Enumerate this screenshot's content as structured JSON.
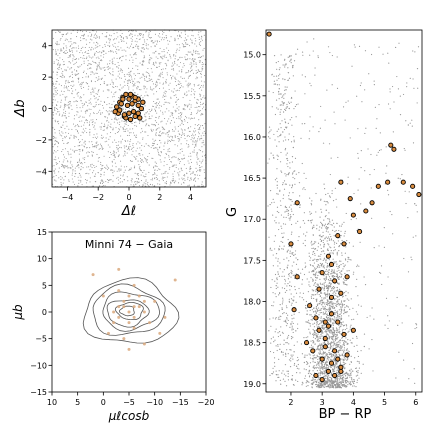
{
  "chart_data": [
    {
      "id": "sky",
      "type": "scatter",
      "xlabel": "Δℓ",
      "ylabel": "Δb",
      "xlim": [
        -5,
        5
      ],
      "ylim": [
        -5,
        5
      ],
      "xticks": [
        -4,
        -2,
        0,
        2,
        4
      ],
      "yticks": [
        -4,
        -2,
        0,
        2,
        4
      ],
      "series": [
        {
          "role": "field",
          "color": "#999999",
          "description_count": 2600,
          "extent": {
            "x": [
              -5,
              5
            ],
            "y": [
              -5,
              5
            ]
          }
        },
        {
          "role": "members",
          "color": "#d98c3f",
          "edge": "#000000",
          "x": [
            -0.8,
            -0.6,
            -0.4,
            -0.2,
            0.0,
            0.2,
            0.4,
            0.6,
            0.8,
            -0.7,
            -0.3,
            0.1,
            0.5,
            0.7,
            -0.5,
            -0.1,
            0.3,
            0.6,
            -0.6,
            -0.2,
            0.2,
            0.4,
            -0.4,
            0.0,
            0.9,
            -0.9,
            0.1,
            0.4,
            -0.3,
            0.6
          ],
          "y": [
            0.1,
            0.4,
            0.7,
            0.9,
            0.6,
            0.8,
            0.5,
            0.2,
            0.0,
            -0.3,
            -0.5,
            -0.7,
            -0.4,
            -0.6,
            0.3,
            0.2,
            -0.2,
            0.6,
            -0.1,
            -0.6,
            0.3,
            -0.5,
            0.6,
            -0.3,
            0.4,
            -0.2,
            0.9,
            0.7,
            -0.4,
            -0.3
          ]
        }
      ]
    },
    {
      "id": "pm",
      "type": "scatter",
      "title": "Minni 74  −  Gaia",
      "xlabel": "μℓcosb",
      "ylabel": "μb",
      "xlim": [
        10,
        -20
      ],
      "ylim": [
        -15,
        15
      ],
      "xticks": [
        10,
        5,
        0,
        -5,
        -10,
        -15,
        -20
      ],
      "yticks": [
        -15,
        -10,
        -5,
        0,
        5,
        10,
        15
      ],
      "series": [
        {
          "role": "members",
          "color": "#d9a87c",
          "x": [
            -3,
            -5,
            -6,
            -4,
            -7,
            -2,
            -8,
            -5,
            -3,
            -6,
            -9,
            -4,
            0,
            -1,
            -10,
            -12,
            -6,
            -4,
            -3,
            -8,
            -5,
            -7,
            -2,
            -6,
            -11,
            2,
            -14,
            -8,
            -5,
            -3
          ],
          "y": [
            1,
            0,
            -1,
            2,
            1,
            -2,
            0,
            3,
            -1,
            -3,
            -2,
            1,
            3,
            -4,
            2,
            -1,
            5,
            -5,
            4,
            2,
            -2,
            3,
            0,
            1,
            -4,
            7,
            6,
            -6,
            -7,
            8
          ]
        },
        {
          "role": "contours",
          "color": "#555555",
          "center": [
            -5,
            0
          ],
          "levels": [
            [
              9,
              6
            ],
            [
              7,
              4.6
            ],
            [
              5.5,
              3.5
            ],
            [
              4,
              2.5
            ],
            [
              2.6,
              1.6
            ],
            [
              1.4,
              0.9
            ]
          ]
        }
      ]
    },
    {
      "id": "cmd",
      "type": "scatter",
      "xlabel": "BP − RP",
      "ylabel": "G",
      "xlim": [
        1.2,
        6.2
      ],
      "ylim": [
        19.1,
        14.7
      ],
      "xticks": [
        2,
        3,
        4,
        5,
        6
      ],
      "yticks": [
        15.0,
        15.5,
        16.0,
        16.5,
        17.0,
        17.5,
        18.0,
        18.5,
        19.0
      ],
      "series": [
        {
          "role": "field",
          "color": "#999999",
          "description_count": 3000
        },
        {
          "role": "members",
          "color": "#d98c3f",
          "edge": "#000000",
          "x": [
            1.3,
            5.2,
            5.3,
            3.6,
            3.9,
            5.6,
            5.9,
            6.1,
            4.0,
            4.4,
            4.6,
            3.5,
            3.7,
            3.2,
            3.3,
            3.0,
            3.8,
            3.4,
            2.9,
            3.3,
            3.6,
            2.6,
            2.8,
            3.1,
            3.2,
            3.5,
            3.7,
            4.0,
            3.1,
            3.4,
            2.7,
            3.0,
            3.3,
            3.5,
            3.2,
            3.4,
            3.6,
            2.8,
            3.0,
            3.8,
            3.1,
            3.3,
            2.5,
            3.6,
            2.9,
            4.2,
            4.8,
            5.1,
            2.2,
            2.0,
            2.2,
            2.1
          ],
          "y": [
            14.75,
            16.1,
            16.15,
            16.55,
            16.75,
            16.55,
            16.6,
            16.7,
            16.95,
            16.9,
            16.8,
            17.2,
            17.3,
            17.45,
            17.55,
            17.65,
            17.7,
            17.75,
            17.85,
            17.95,
            17.9,
            18.05,
            18.2,
            18.25,
            18.3,
            18.25,
            18.4,
            18.35,
            18.55,
            18.6,
            18.6,
            18.7,
            18.75,
            18.7,
            18.85,
            18.9,
            18.8,
            18.9,
            18.95,
            18.65,
            18.45,
            18.15,
            18.5,
            18.85,
            18.35,
            17.15,
            16.6,
            16.55,
            16.8,
            17.3,
            17.7,
            18.1
          ]
        }
      ]
    }
  ]
}
